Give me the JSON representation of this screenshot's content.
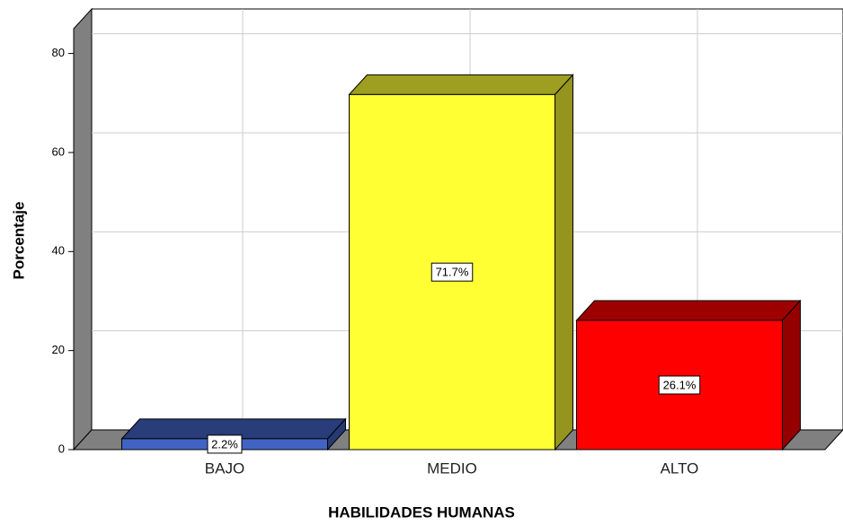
{
  "chart_data": {
    "type": "bar3d",
    "x_label": "HABILIDADES HUMANAS",
    "y_label": "Porcentaje",
    "categories": [
      "BAJO",
      "MEDIO",
      "ALTO"
    ],
    "values": [
      2.2,
      71.7,
      26.1
    ],
    "value_labels": [
      "2.2%",
      "71.7%",
      "26.1%"
    ],
    "colors": [
      "#4163c4",
      "#ffff33",
      "#ff0000"
    ],
    "ylim": [
      0,
      85
    ],
    "yticks": [
      0,
      20,
      40,
      60,
      80
    ],
    "grid": true
  }
}
